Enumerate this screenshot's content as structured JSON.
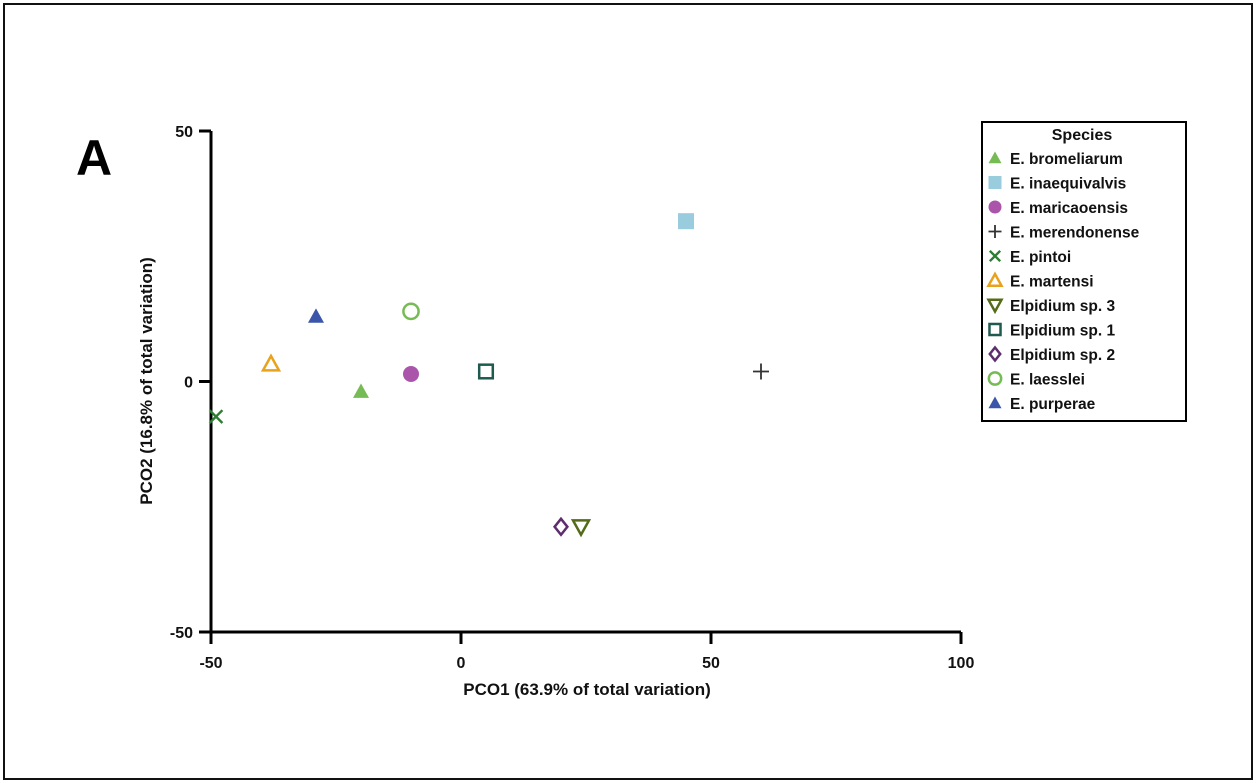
{
  "panel_label": "A",
  "chart_data": {
    "type": "scatter",
    "xlabel": "PCO1 (63.9% of total variation)",
    "ylabel": "PCO2 (16.8% of total variation)",
    "xlim": [
      -50,
      100
    ],
    "ylim": [
      -50,
      50
    ],
    "xticks": [
      -50,
      0,
      50,
      100
    ],
    "yticks": [
      -50,
      0,
      50
    ],
    "grid": false,
    "legend": {
      "title": "Species",
      "placement": "right"
    },
    "series": [
      {
        "name": "E. bromeliarum",
        "marker": "triangle-up-filled",
        "color": "#77bb55",
        "x": [
          -20
        ],
        "y": [
          -2
        ]
      },
      {
        "name": "E. inaequivalvis",
        "marker": "square-filled",
        "color": "#99ccdd",
        "x": [
          45
        ],
        "y": [
          32
        ]
      },
      {
        "name": "E. maricaoensis",
        "marker": "circle-filled",
        "color": "#aa55aa",
        "x": [
          -10
        ],
        "y": [
          1.5
        ]
      },
      {
        "name": "E. merendonense",
        "marker": "plus",
        "color": "#333333",
        "x": [
          60
        ],
        "y": [
          2
        ]
      },
      {
        "name": "E. pintoi",
        "marker": "x",
        "color": "#2e7d32",
        "x": [
          -49
        ],
        "y": [
          -7
        ]
      },
      {
        "name": "E. martensi",
        "marker": "triangle-up-open",
        "color": "#e8a21c",
        "x": [
          -38
        ],
        "y": [
          3.5
        ]
      },
      {
        "name": "Elpidium sp. 3",
        "marker": "triangle-down-open",
        "color": "#556b1a",
        "x": [
          24
        ],
        "y": [
          -29
        ]
      },
      {
        "name": "Elpidium  sp. 1",
        "marker": "square-open",
        "color": "#1f5a4e",
        "x": [
          5
        ],
        "y": [
          2
        ]
      },
      {
        "name": "Elpidium sp. 2",
        "marker": "diamond-open",
        "color": "#5e2d6e",
        "x": [
          20
        ],
        "y": [
          -29
        ]
      },
      {
        "name": "E. laesslei",
        "marker": "circle-open",
        "color": "#77bb55",
        "x": [
          -10
        ],
        "y": [
          14
        ]
      },
      {
        "name": "E. purperae",
        "marker": "triangle-up-filled",
        "color": "#3a55aa",
        "x": [
          -29
        ],
        "y": [
          13
        ]
      }
    ]
  }
}
